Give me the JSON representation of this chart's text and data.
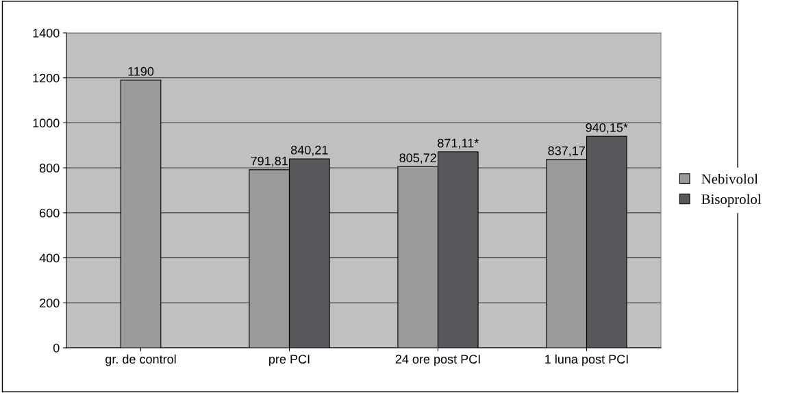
{
  "chart_data": {
    "type": "bar",
    "categories": [
      "gr. de control",
      "pre PCI",
      "24 ore post PCI",
      "1 luna post PCI"
    ],
    "series": [
      {
        "name": "Nebivolol",
        "color": "#9a9a9a",
        "values": [
          1190,
          791.81,
          805.72,
          837.17
        ],
        "value_labels": [
          "1190",
          "791,81",
          "805,72",
          "837,17"
        ]
      },
      {
        "name": "Bisoprolol",
        "color": "#58585c",
        "values": [
          null,
          840.21,
          871.11,
          940.15
        ],
        "value_labels": [
          null,
          "840,21",
          "871,11*",
          "940,15*"
        ]
      }
    ],
    "ylim": [
      0,
      1400
    ],
    "yticks": [
      0,
      200,
      400,
      600,
      800,
      1000,
      1200,
      1400
    ],
    "grid": "y",
    "legend": "right"
  }
}
